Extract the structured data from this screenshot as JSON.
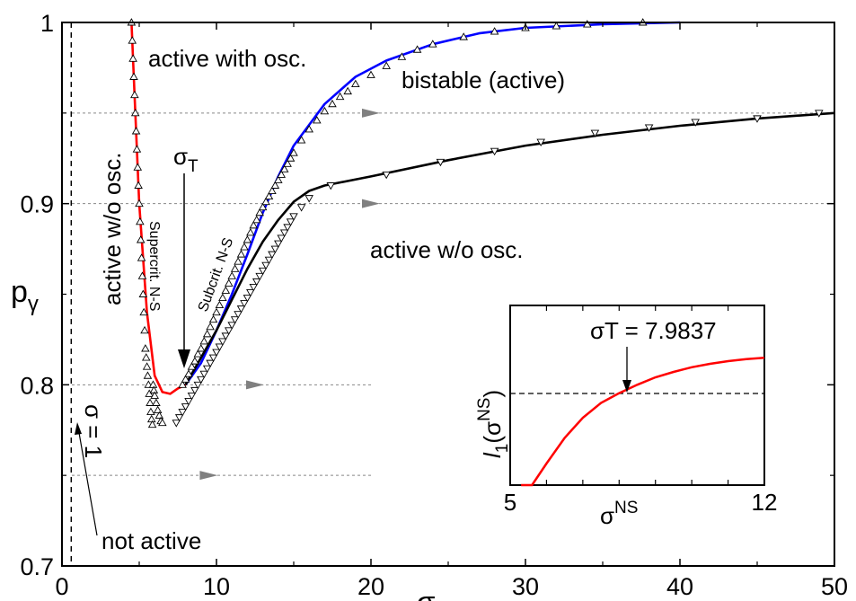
{
  "chart_data": {
    "type": "line",
    "xlabel": "σ",
    "ylabel": "pγ",
    "xlim": [
      0,
      50
    ],
    "ylim": [
      0.7,
      1.0
    ],
    "xticks": [
      "0",
      "10",
      "20",
      "30",
      "40",
      "50"
    ],
    "yticks": [
      "0.7",
      "0.8",
      "0.9",
      "1"
    ],
    "grid": "dotted horizontal lines at p = 0.95, 0.9, 0.8, 0.75",
    "vertical_line": {
      "x": 0.6,
      "style": "dashed"
    },
    "colors": {
      "red": "#ff0000",
      "blue": "#0000ff",
      "black": "#000000",
      "arrow": "#808080",
      "grid": "#888888"
    },
    "series": [
      {
        "color": "red",
        "style": "solid",
        "x": [
          4.5,
          4.7,
          5.0,
          5.5,
          6.0,
          6.5,
          7.0,
          7.5,
          8.0
        ],
        "y": [
          1.0,
          0.96,
          0.9,
          0.84,
          0.805,
          0.796,
          0.795,
          0.798,
          0.8
        ]
      },
      {
        "color": "blue",
        "style": "solid",
        "x": [
          8.0,
          9.0,
          10.0,
          11.0,
          12.0,
          13.0,
          14.0,
          15.0,
          17.0,
          19.0,
          21.0,
          24.0,
          27.0,
          30.0,
          35.0,
          40.0
        ],
        "y": [
          0.8,
          0.812,
          0.83,
          0.85,
          0.872,
          0.895,
          0.915,
          0.932,
          0.955,
          0.97,
          0.979,
          0.988,
          0.994,
          0.997,
          0.999,
          1.0
        ]
      },
      {
        "color": "black",
        "style": "solid",
        "x": [
          8.0,
          9.0,
          10.0,
          11.0,
          12.0,
          13.0,
          14.0,
          15.0,
          16.0,
          17.0,
          20.0,
          25.0,
          30.0,
          35.0,
          40.0,
          45.0,
          50.0
        ],
        "y": [
          0.8,
          0.815,
          0.83,
          0.847,
          0.864,
          0.879,
          0.891,
          0.901,
          0.907,
          0.91,
          0.915,
          0.924,
          0.932,
          0.938,
          0.943,
          0.947,
          0.95
        ]
      }
    ],
    "markers_up": {
      "x": [
        4.5,
        4.55,
        4.6,
        4.65,
        4.7,
        4.75,
        4.8,
        4.85,
        4.9,
        4.95,
        5.0,
        5.05,
        5.1,
        5.15,
        5.2,
        5.25,
        5.3,
        5.35,
        5.4,
        5.45,
        5.5,
        5.55,
        5.6,
        5.65,
        5.7,
        5.75,
        5.8,
        5.85,
        5.9,
        5.95,
        6.0,
        6.1,
        6.2,
        6.3,
        6.4,
        6.5,
        7.8,
        8.0,
        8.2,
        8.4,
        8.6,
        8.8,
        9.0,
        9.2,
        9.4,
        9.6,
        9.8,
        10.0,
        10.2,
        10.4,
        10.6,
        10.8,
        11.0,
        11.2,
        11.4,
        11.6,
        11.8,
        12.0,
        12.2,
        12.4,
        12.6,
        12.8,
        13.0,
        13.2,
        13.4,
        13.6,
        13.8,
        14.0,
        14.2,
        14.4,
        14.6,
        14.8,
        15.0,
        15.5,
        16.0,
        16.5,
        17.0,
        17.5,
        18.0,
        18.5,
        19.0,
        20.0,
        21.0,
        22.0,
        23.0,
        24.0,
        26.0,
        28.0,
        30.0,
        32.0,
        34.0,
        37.6
      ],
      "y": [
        1.0,
        0.99,
        0.98,
        0.97,
        0.96,
        0.95,
        0.94,
        0.93,
        0.92,
        0.91,
        0.9,
        0.89,
        0.88,
        0.87,
        0.86,
        0.85,
        0.84,
        0.83,
        0.82,
        0.815,
        0.81,
        0.805,
        0.8,
        0.795,
        0.79,
        0.785,
        0.781,
        0.778,
        0.8,
        0.797,
        0.794,
        0.79,
        0.786,
        0.783,
        0.78,
        0.779,
        0.8,
        0.803,
        0.806,
        0.81,
        0.813,
        0.817,
        0.82,
        0.824,
        0.828,
        0.832,
        0.836,
        0.84,
        0.844,
        0.848,
        0.852,
        0.856,
        0.86,
        0.864,
        0.868,
        0.872,
        0.876,
        0.88,
        0.884,
        0.888,
        0.891,
        0.895,
        0.898,
        0.901,
        0.904,
        0.907,
        0.91,
        0.913,
        0.916,
        0.919,
        0.922,
        0.925,
        0.928,
        0.935,
        0.941,
        0.946,
        0.951,
        0.955,
        0.959,
        0.962,
        0.966,
        0.971,
        0.976,
        0.981,
        0.985,
        0.988,
        0.992,
        0.995,
        0.997,
        0.998,
        0.999,
        1.0
      ]
    },
    "markers_down": {
      "x": [
        7.4,
        7.6,
        7.8,
        8.0,
        8.2,
        8.4,
        8.6,
        8.8,
        9.0,
        9.2,
        9.4,
        9.6,
        9.8,
        10.0,
        10.2,
        10.4,
        10.6,
        10.8,
        11.0,
        11.2,
        11.4,
        11.6,
        11.8,
        12.0,
        12.2,
        12.4,
        12.6,
        12.8,
        13.0,
        13.2,
        13.4,
        13.6,
        13.8,
        14.0,
        14.2,
        14.4,
        14.6,
        14.8,
        15.0,
        15.5,
        16.0,
        17.4,
        21.0,
        24.5,
        28.0,
        31.0,
        34.5,
        38.0,
        41.0,
        45.0,
        49.0
      ],
      "y": [
        0.779,
        0.782,
        0.785,
        0.788,
        0.791,
        0.794,
        0.797,
        0.8,
        0.803,
        0.806,
        0.809,
        0.812,
        0.815,
        0.818,
        0.821,
        0.824,
        0.827,
        0.83,
        0.833,
        0.836,
        0.839,
        0.842,
        0.845,
        0.848,
        0.851,
        0.854,
        0.857,
        0.86,
        0.863,
        0.866,
        0.869,
        0.872,
        0.875,
        0.878,
        0.881,
        0.884,
        0.887,
        0.89,
        0.893,
        0.898,
        0.903,
        0.91,
        0.916,
        0.923,
        0.929,
        0.934,
        0.939,
        0.942,
        0.945,
        0.947,
        0.95
      ]
    },
    "flow_arrows": [
      {
        "x": 20,
        "y": 0.95
      },
      {
        "x": 20,
        "y": 0.9
      },
      {
        "x": 12.5,
        "y": 0.8
      },
      {
        "x": 9.5,
        "y": 0.75
      }
    ],
    "annotations": {
      "active_with_osc": "active with osc.",
      "bistable": "bistable (active)",
      "active_wo_osc_right": "active w/o osc.",
      "active_wo_osc_left": "active w/o osc.",
      "supercrit": "Supercrit. N-S",
      "subcrit": "Subcrit. N-S",
      "sigma_one": "σ = 1",
      "not_active": "not active",
      "sigma_t": "σT"
    },
    "inset": {
      "xlabel": "σNS",
      "ylabel": "l1(σNS)",
      "xlim": [
        5,
        12
      ],
      "xticks": [
        "5",
        "12"
      ],
      "annotation": "σT = 7.9837",
      "zero_line": true,
      "curve": {
        "color": "red",
        "x": [
          5.3,
          5.6,
          6.0,
          6.5,
          7.0,
          7.5,
          7.9837,
          8.5,
          9.0,
          9.5,
          10.0,
          10.5,
          11.0,
          11.5,
          12.0
        ],
        "y": [
          -0.9,
          -0.72,
          -0.52,
          -0.33,
          -0.18,
          -0.07,
          0.0,
          0.065,
          0.12,
          0.16,
          0.195,
          0.22,
          0.24,
          0.255,
          0.265
        ]
      }
    }
  }
}
